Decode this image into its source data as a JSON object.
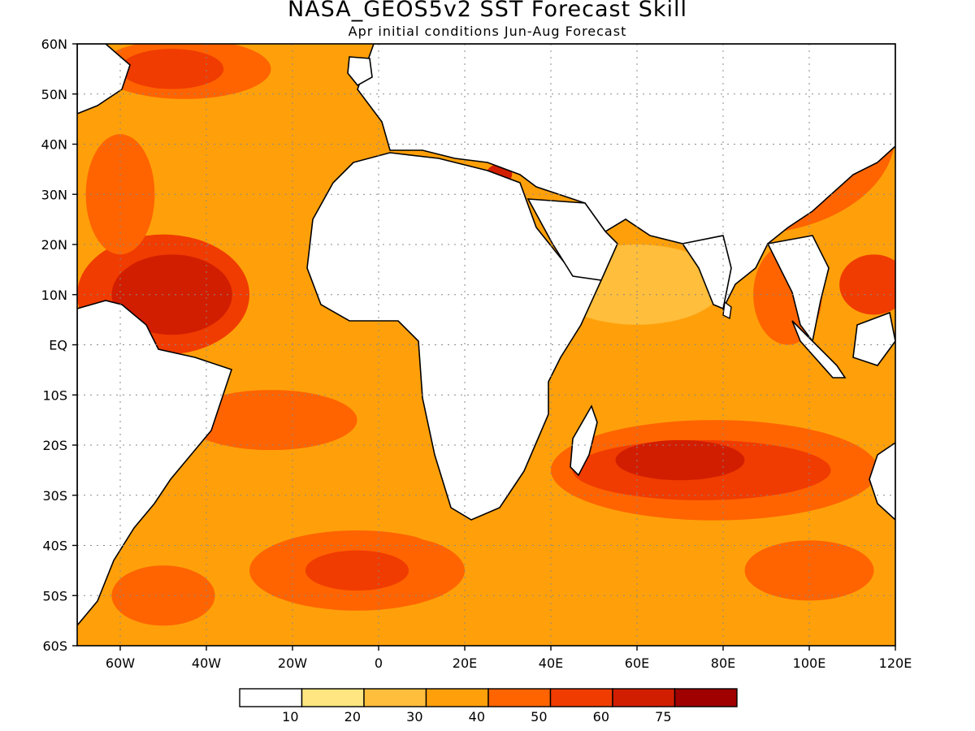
{
  "title": "NASA_GEOS5v2 SST Forecast Skill",
  "subtitle": "Apr initial conditions  Jun-Aug Forecast",
  "map": {
    "lon_range": [
      -70,
      120
    ],
    "lat_range": [
      -60,
      60
    ],
    "lat_ticks": [
      {
        "value": 60,
        "label": "60N"
      },
      {
        "value": 50,
        "label": "50N"
      },
      {
        "value": 40,
        "label": "40N"
      },
      {
        "value": 30,
        "label": "30N"
      },
      {
        "value": 20,
        "label": "20N"
      },
      {
        "value": 10,
        "label": "10N"
      },
      {
        "value": 0,
        "label": "EQ"
      },
      {
        "value": -10,
        "label": "10S"
      },
      {
        "value": -20,
        "label": "20S"
      },
      {
        "value": -30,
        "label": "30S"
      },
      {
        "value": -40,
        "label": "40S"
      },
      {
        "value": -50,
        "label": "50S"
      },
      {
        "value": -60,
        "label": "60S"
      }
    ],
    "lon_ticks": [
      {
        "value": -60,
        "label": "60W"
      },
      {
        "value": -40,
        "label": "40W"
      },
      {
        "value": -20,
        "label": "20W"
      },
      {
        "value": 0,
        "label": "0"
      },
      {
        "value": 20,
        "label": "20E"
      },
      {
        "value": 40,
        "label": "40E"
      },
      {
        "value": 60,
        "label": "60E"
      },
      {
        "value": 80,
        "label": "80E"
      },
      {
        "value": 100,
        "label": "100E"
      },
      {
        "value": 120,
        "label": "120E"
      }
    ],
    "grid": true,
    "land_color": "#ffffff",
    "skill_regions": [
      {
        "level": 30,
        "lon": -5,
        "lat": 45,
        "rx": 70,
        "ry": 10
      },
      {
        "level": 40,
        "lon": 85,
        "lat": 42,
        "rx": 35,
        "ry": 20
      },
      {
        "level": 30,
        "lon": 35,
        "lat": 5,
        "rx": 12,
        "ry": 25
      },
      {
        "level": 20,
        "lon": 60,
        "lat": 12,
        "rx": 20,
        "ry": 8
      },
      {
        "level": 50,
        "lon": -50,
        "lat": 10,
        "rx": 20,
        "ry": 12
      },
      {
        "level": 60,
        "lon": -48,
        "lat": 10,
        "rx": 14,
        "ry": 8
      },
      {
        "level": 40,
        "lon": -45,
        "lat": 55,
        "rx": 20,
        "ry": 6
      },
      {
        "level": 50,
        "lon": -48,
        "lat": 55,
        "rx": 12,
        "ry": 4
      },
      {
        "level": 40,
        "lon": -60,
        "lat": 30,
        "rx": 8,
        "ry": 12
      },
      {
        "level": 40,
        "lon": -25,
        "lat": -15,
        "rx": 20,
        "ry": 6
      },
      {
        "level": 40,
        "lon": 78,
        "lat": -25,
        "rx": 38,
        "ry": 10
      },
      {
        "level": 50,
        "lon": 75,
        "lat": -25,
        "rx": 30,
        "ry": 6
      },
      {
        "level": 60,
        "lon": 70,
        "lat": -23,
        "rx": 15,
        "ry": 4
      },
      {
        "level": 40,
        "lon": 95,
        "lat": 10,
        "rx": 8,
        "ry": 10
      },
      {
        "level": 50,
        "lon": 115,
        "lat": 12,
        "rx": 8,
        "ry": 6
      },
      {
        "level": 40,
        "lon": 100,
        "lat": -45,
        "rx": 15,
        "ry": 6
      },
      {
        "level": 40,
        "lon": -5,
        "lat": -45,
        "rx": 25,
        "ry": 8
      },
      {
        "level": 50,
        "lon": -5,
        "lat": -45,
        "rx": 12,
        "ry": 4
      },
      {
        "level": 30,
        "lon": 20,
        "lat": -35,
        "rx": 15,
        "ry": 5
      },
      {
        "level": 60,
        "lon": 28,
        "lat": 34,
        "rx": 3,
        "ry": 2
      },
      {
        "level": 30,
        "lon": 70,
        "lat": -52,
        "rx": 10,
        "ry": 6
      },
      {
        "level": 40,
        "lon": -50,
        "lat": -50,
        "rx": 12,
        "ry": 6
      }
    ]
  },
  "colorbar": {
    "labels": [
      "10",
      "20",
      "30",
      "40",
      "50",
      "60",
      "75"
    ],
    "colors": [
      "#ffffff",
      "#ffe680",
      "#ffbe3c",
      "#ffa00a",
      "#ff6400",
      "#f03c00",
      "#d21e00",
      "#a00000"
    ]
  }
}
